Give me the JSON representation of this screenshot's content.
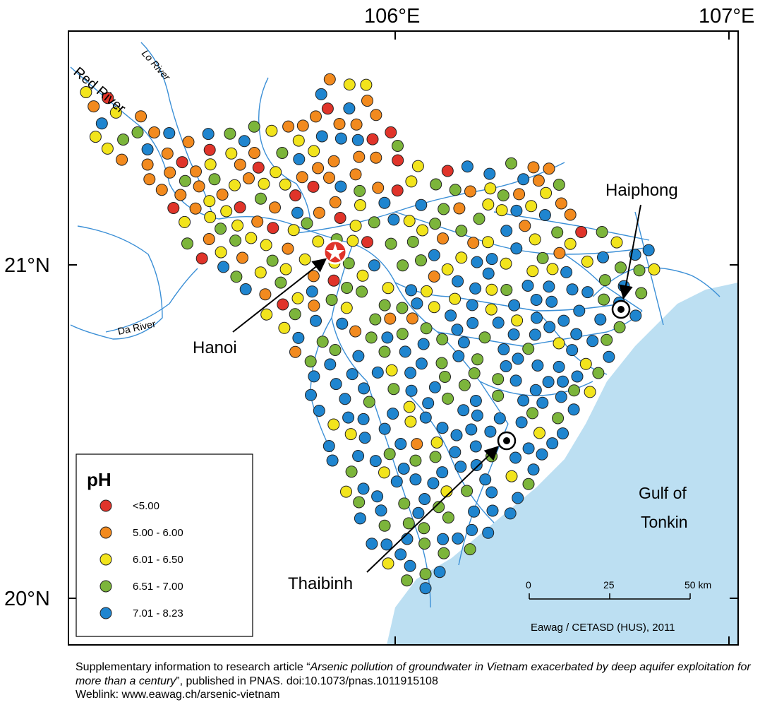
{
  "axes": {
    "lon_labels": [
      "106°E",
      "107°E"
    ],
    "lat_labels": [
      "21°N",
      "20°N"
    ]
  },
  "rivers": {
    "lo": "Lo River",
    "red": "Red River",
    "da": "Da River"
  },
  "places": {
    "hanoi": "Hanoi",
    "haiphong": "Haiphong",
    "thaibinh": "Thaibinh",
    "gulf_line1": "Gulf of",
    "gulf_line2": "Tonkin"
  },
  "legend": {
    "title": "pH",
    "classes": [
      {
        "label": "<5.00",
        "color": "#e0342a"
      },
      {
        "label": "5.00 - 6.00",
        "color": "#f28a1e"
      },
      {
        "label": "6.01 - 6.50",
        "color": "#f2e41c"
      },
      {
        "label": "6.51 - 7.00",
        "color": "#7cb53b"
      },
      {
        "label": "7.01 - 8.23",
        "color": "#1f85cf"
      }
    ]
  },
  "scalebar": {
    "ticks": [
      "0",
      "25",
      "50 km"
    ]
  },
  "credit": "Eawag / CETASD (HUS), 2011",
  "caption": {
    "prefix": "Supplementary information to research article “",
    "title_italic": "Arsenic pollution of groundwater in Vietnam exacerbated by deep aquifer exploitation for more than a century",
    "suffix": "”, published in PNAS. doi:10.1073/pnas.1011915108",
    "weblink": "Weblink: www.eawag.ch/arsenic-vietnam"
  },
  "colors": {
    "sea": "#bcdff2",
    "river": "#3b8fd6",
    "marker_outline": "#222222"
  }
}
